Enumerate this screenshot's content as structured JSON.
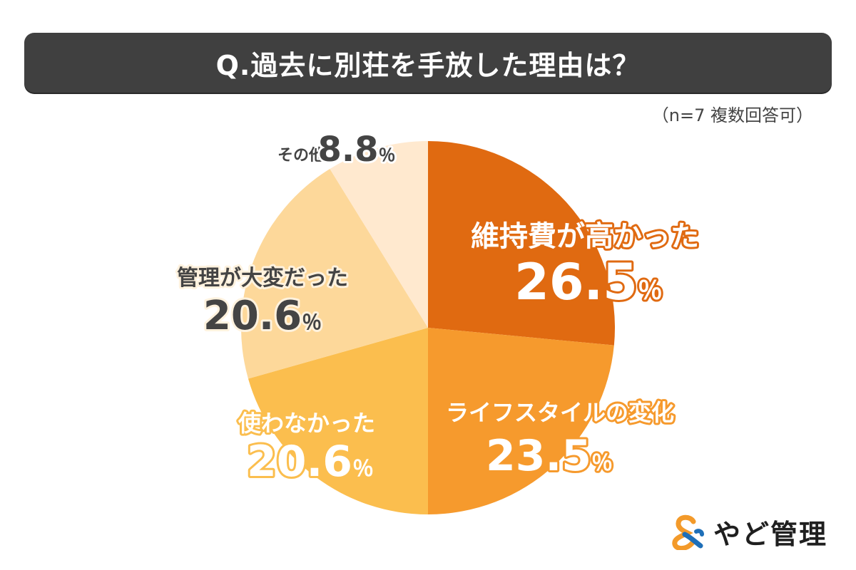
{
  "title": "Q.過去に別荘を手放した理由は？",
  "note": "（n=7 複数回答可）",
  "logo": {
    "text": "やど管理",
    "icon": "ampersand-logo-icon"
  },
  "chart_data": {
    "type": "pie",
    "unit": "％",
    "start_angle_deg": 0,
    "direction": "clockwise",
    "slices": [
      {
        "label": "維持費が高かった",
        "value": 26.5,
        "display": "26.5",
        "color": "#E06A11"
      },
      {
        "label": "ライフスタイルの変化",
        "value": 23.5,
        "display": "23.5",
        "color": "#F69A2D"
      },
      {
        "label": "使わなかった",
        "value": 20.6,
        "display": "20.6",
        "color": "#FBBE4E"
      },
      {
        "label": "管理が大変だった",
        "value": 20.6,
        "display": "20.6",
        "color": "#FDD89A"
      },
      {
        "label": "その他",
        "value": 8.8,
        "display": "8.8",
        "color": "#FFE9CF"
      }
    ]
  }
}
